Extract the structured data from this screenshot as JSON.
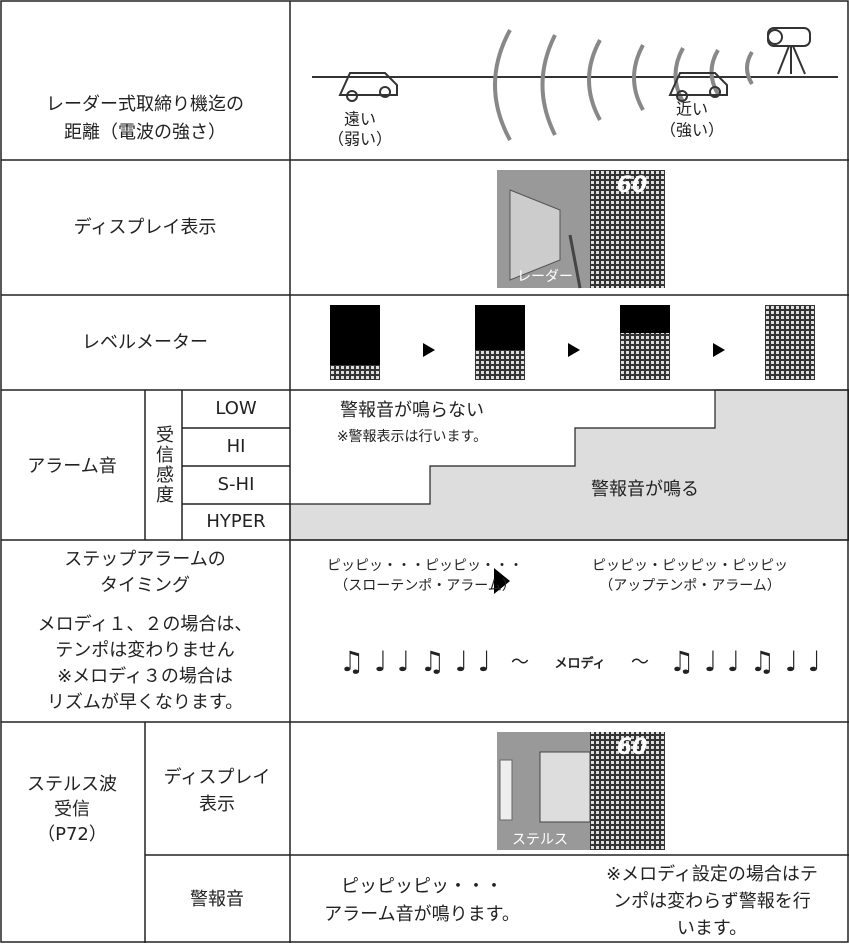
{
  "distance": {
    "label": [
      "レーダー式取締り機迄の",
      "距離（電波の強さ）"
    ],
    "far": "遠い",
    "far_sub": "（弱い）",
    "near": "近い",
    "near_sub": "（強い）"
  },
  "display": {
    "label": "ディスプレイ表示",
    "speed": "60",
    "caption": "レーダー"
  },
  "level_meter": {
    "label": "レベルメーター"
  },
  "alarm": {
    "label": "アラーム音",
    "sensitivity": "受信感度",
    "levels": [
      "LOW",
      "HI",
      "S-HI",
      "HYPER"
    ],
    "no_sound": "警報音が鳴らない",
    "no_sound_note": "※警報表示は行います。",
    "sound": "警報音が鳴る"
  },
  "step_alarm": {
    "label": [
      "ステップアラームの",
      "タイミング"
    ],
    "note": [
      "メロディ１、２の場合は、",
      "テンポは変わりません",
      "※メロディ３の場合は",
      "リズムが早くなります。"
    ],
    "slow": "ピッピッ・・・ピッピッ・・・",
    "slow_sub": "（スローテンポ・アラーム）",
    "fast": "ピッピッ・ピッピッ・ピッピッ",
    "fast_sub": "（アップテンポ・アラーム）",
    "notes_left": "♫ ♩ ♩ ♫ ♩ ♩",
    "tilde": "～",
    "melody": "メロディ",
    "notes_right": "♫ ♩ ♩ ♫ ♩ ♩"
  },
  "stealth": {
    "label": [
      "ステルス波",
      "受信",
      "（P72）"
    ],
    "display_label": [
      "ディスプレイ",
      "表示"
    ],
    "speed": "60",
    "caption": "ステルス",
    "sound_label": "警報音",
    "sound": [
      "ピッピッピッ・・・",
      "アラーム音が鳴ります。"
    ],
    "sound_note": [
      "※メロディ設定の場合はテ",
      "ンポは変わらず警報を行",
      "います。"
    ]
  }
}
